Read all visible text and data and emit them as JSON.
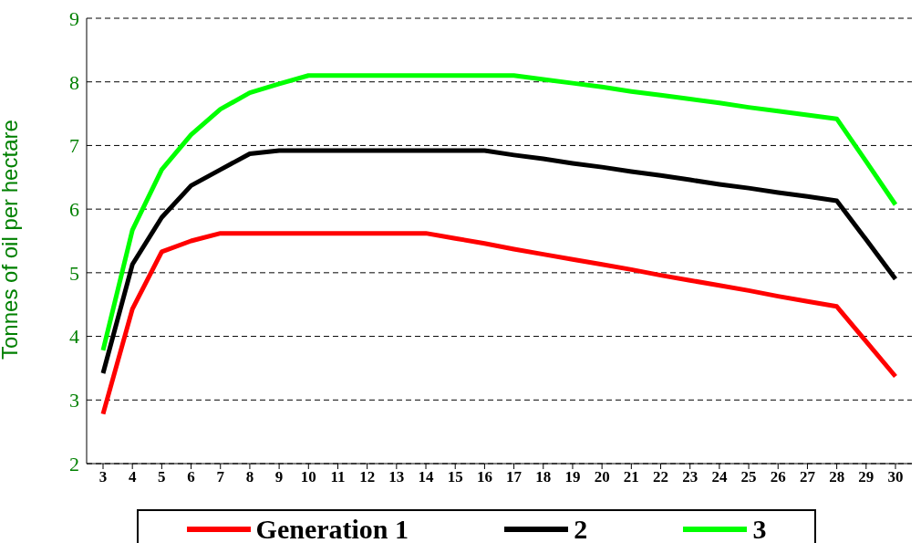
{
  "chart_data": {
    "type": "line",
    "ylabel": "Tonnes of oil per hectare",
    "categories": [
      "3",
      "4",
      "5",
      "6",
      "7",
      "8",
      "9",
      "10",
      "11",
      "12",
      "13",
      "14",
      "15",
      "16",
      "17",
      "18",
      "19",
      "20",
      "21",
      "22",
      "23",
      "24",
      "25",
      "26",
      "27",
      "28",
      "29",
      "30"
    ],
    "series": [
      {
        "name": "Generation 1",
        "color": "#ff0000",
        "values": [
          2.78,
          4.43,
          5.33,
          5.5,
          5.62,
          5.62,
          5.62,
          5.62,
          5.62,
          5.62,
          5.62,
          5.62,
          5.54,
          5.46,
          5.37,
          5.29,
          5.21,
          5.13,
          5.05,
          4.96,
          4.88,
          4.8,
          4.72,
          4.63,
          4.55,
          4.47,
          3.92,
          3.37
        ]
      },
      {
        "name": "2",
        "color": "#000000",
        "values": [
          3.42,
          5.13,
          5.87,
          6.37,
          6.62,
          6.87,
          6.92,
          6.92,
          6.92,
          6.92,
          6.92,
          6.92,
          6.92,
          6.92,
          6.85,
          6.79,
          6.72,
          6.66,
          6.59,
          6.53,
          6.46,
          6.39,
          6.33,
          6.26,
          6.2,
          6.13,
          5.52,
          4.9
        ]
      },
      {
        "name": "3",
        "color": "#00ff00",
        "values": [
          3.78,
          5.67,
          6.62,
          7.17,
          7.57,
          7.83,
          7.97,
          8.1,
          8.1,
          8.1,
          8.1,
          8.1,
          8.1,
          8.1,
          8.1,
          8.04,
          7.98,
          7.92,
          7.85,
          7.79,
          7.73,
          7.67,
          7.6,
          7.54,
          7.48,
          7.42,
          6.75,
          6.07
        ]
      }
    ],
    "ylim": [
      2,
      9
    ],
    "yticks": [
      2,
      3,
      4,
      5,
      6,
      7,
      8,
      9
    ],
    "grid": "y",
    "legend": "bottom",
    "marker": "none",
    "line_style": "solid"
  }
}
